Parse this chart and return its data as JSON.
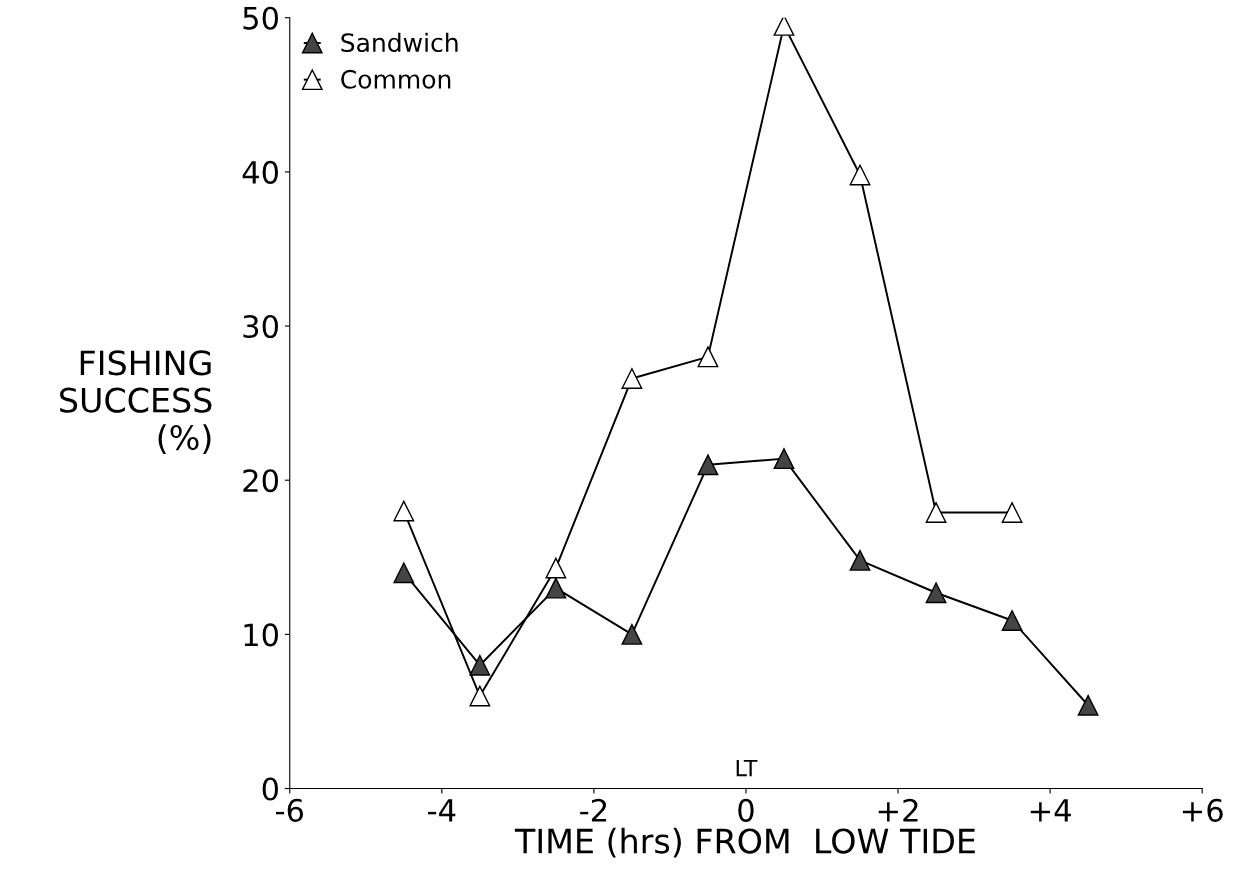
{
  "chart_data": {
    "type": "line",
    "xlabel": "TIME (hrs) FROM  LOW TIDE",
    "ylabel": "FISHING\nSUCCESS\n(%)",
    "x": [
      -4.5,
      -3.5,
      -2.5,
      -1.5,
      -0.5,
      0.5,
      1.5,
      2.5,
      3.5,
      4.5
    ],
    "series": [
      {
        "name": "Sandwich",
        "color": "#444444",
        "values": [
          14,
          8,
          13,
          10,
          21,
          21.4,
          14.8,
          12.7,
          10.9,
          5.4
        ]
      },
      {
        "name": "Common",
        "color": "#ffffff",
        "values": [
          18,
          6,
          14.3,
          26.6,
          28,
          49.5,
          39.8,
          17.9,
          17.9,
          null
        ]
      }
    ],
    "xlim": [
      -6,
      6
    ],
    "ylim": [
      0,
      50
    ],
    "xticks": [
      -6,
      -4,
      -2,
      0,
      {
        "value": 2,
        "label": "+2"
      },
      {
        "value": 4,
        "label": "+4"
      },
      {
        "value": 6,
        "label": "+6"
      }
    ],
    "yticks": [
      0,
      10,
      20,
      30,
      40,
      50
    ],
    "annotations": [
      "LT"
    ],
    "marker": "triangle",
    "line_style": "solid",
    "legend": "top left",
    "grid": false
  }
}
